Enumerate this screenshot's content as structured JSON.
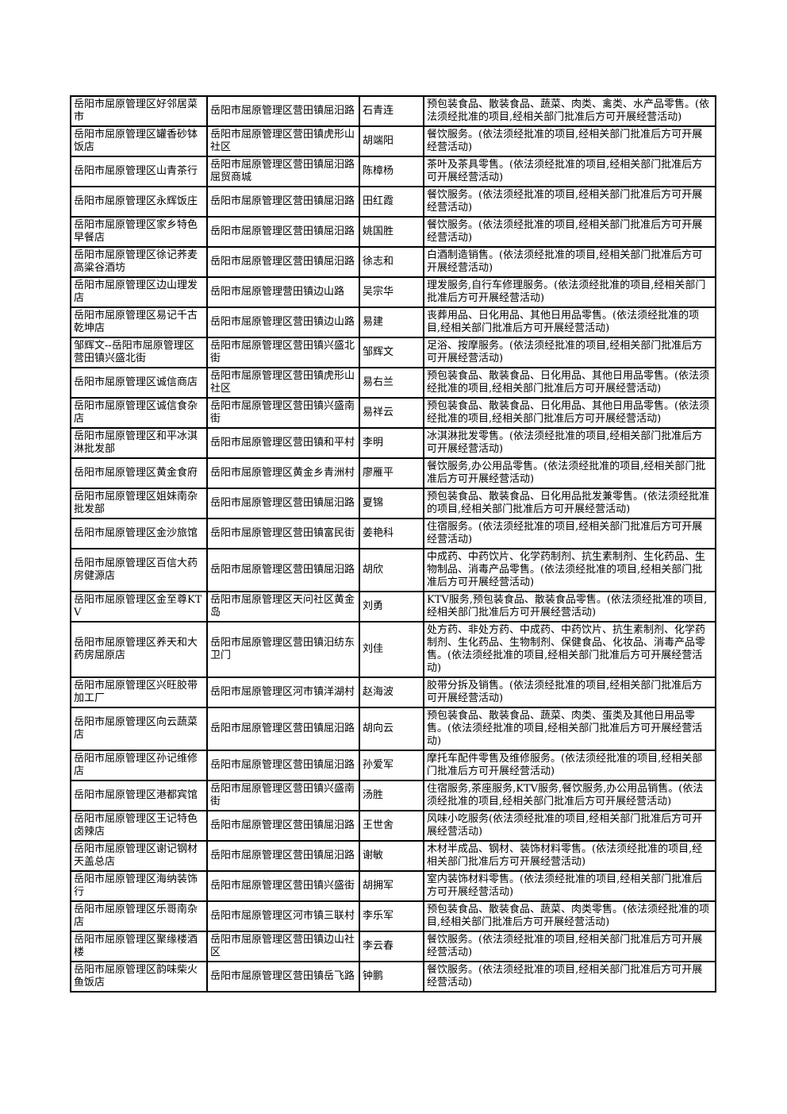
{
  "page": {
    "background": "#ffffff",
    "border_color": "#000000",
    "text_color": "#000000"
  },
  "table": {
    "rows": [
      {
        "name": "岳阳市屈原管理区好邻居菜市",
        "address": "岳阳市屈原管理区营田镇屈汨路",
        "operator": "石青连",
        "scope": "预包装食品、散装食品、蔬菜、肉类、禽类、水产品零售。(依法须经批准的项目,经相关部门批准后方可开展经营活动)"
      },
      {
        "name": "岳阳市屈原管理区罐香砂钵饭店",
        "address": "岳阳市屈原管理区营田镇虎形山社区",
        "operator": "胡端阳",
        "scope": "餐饮服务。(依法须经批准的项目,经相关部门批准后方可开展经营活动)"
      },
      {
        "name": "岳阳市屈原管理区山青茶行",
        "address": "岳阳市屈原管理区营田镇屈汨路屈贸商城",
        "operator": "陈樟杨",
        "scope": "茶叶及茶具零售。(依法须经批准的项目,经相关部门批准后方可开展经营活动)"
      },
      {
        "name": "岳阳市屈原管理区永辉饭庄",
        "address": "岳阳市屈原管理区营田镇屈汨路",
        "operator": "田红霞",
        "scope": "餐饮服务。(依法须经批准的项目,经相关部门批准后方可开展经营活动)"
      },
      {
        "name": "岳阳市屈原管理区家乡特色早餐店",
        "address": "岳阳市屈原管理区营田镇屈汨路",
        "operator": "姚国胜",
        "scope": "餐饮服务。(依法须经批准的项目,经相关部门批准后方可开展经营活动)"
      },
      {
        "name": "岳阳市屈原管理区徐记荞麦高粱谷酒坊",
        "address": "岳阳市屈原管理区营田镇屈汨路",
        "operator": "徐志和",
        "scope": "白酒制造销售。(依法须经批准的项目,经相关部门批准后方可开展经营活动)"
      },
      {
        "name": "岳阳市屈原管理区边山理发店",
        "address": "岳阳市屈原管理营田镇边山路",
        "operator": "吴宗华",
        "scope": "理发服务,自行车修理服务。(依法须经批准的项目,经相关部门批准后方可开展经营活动)"
      },
      {
        "name": "岳阳市屈原管理区易记千古乾坤店",
        "address": "岳阳市屈原管理区营田镇边山路",
        "operator": "易建",
        "scope": "丧葬用品、日化用品、其他日用品零售。(依法须经批准的项目,经相关部门批准后方可开展经营活动)"
      },
      {
        "name": "邹辉文--岳阳市屈原管理区营田镇兴盛北街",
        "address": "岳阳市屈原管理区营田镇兴盛北街",
        "operator": "邹辉文",
        "scope": "足浴、按摩服务。(依法须经批准的项目,经相关部门批准后方可开展经营活动)"
      },
      {
        "name": "岳阳市屈原管理区诚信商店",
        "address": "岳阳市屈原管理区营田镇虎形山社区",
        "operator": "易右兰",
        "scope": "预包装食品、散装食品、日化用品、其他日用品零售。(依法须经批准的项目,经相关部门批准后方可开展经营活动)"
      },
      {
        "name": "岳阳市屈原管理区诚信食杂店",
        "address": "岳阳市屈原管理区营田镇兴盛南街",
        "operator": "易祥云",
        "scope": "预包装食品、散装食品、日化用品、其他日用品零售。(依法须经批准的项目,经相关部门批准后方可开展经营活动)"
      },
      {
        "name": "岳阳市屈原管理区和平冰淇淋批发部",
        "address": "岳阳市屈原管理区营田镇和平村",
        "operator": "李明",
        "scope": "冰淇淋批发零售。(依法须经批准的项目,经相关部门批准后方可开展经营活动)"
      },
      {
        "name": "岳阳市屈原管理区黄金食府",
        "address": "岳阳市屈原管理区黄金乡青洲村",
        "operator": "廖雁平",
        "scope": "餐饮服务,办公用品零售。(依法须经批准的项目,经相关部门批准后方可开展经营活动)"
      },
      {
        "name": "岳阳市屈原管理区姐妹南杂批发部",
        "address": "岳阳市屈原管理区营田镇屈汨路",
        "operator": "夏锦",
        "scope": "预包装食品、散装食品、日化用品批发兼零售。(依法须经批准的项目,经相关部门批准后方可开展经营活动)"
      },
      {
        "name": "岳阳市屈原管理区金沙旅馆",
        "address": "岳阳市屈原管理区营田镇富民街",
        "operator": "姜艳科",
        "scope": "住宿服务。(依法须经批准的项目,经相关部门批准后方可开展经营活动)"
      },
      {
        "name": "岳阳市屈原管理区百信大药房健源店",
        "address": "岳阳市屈原管理区营田镇屈汨路",
        "operator": "胡欣",
        "scope": "中成药、中药饮片、化学药制剂、抗生素制剂、生化药品、生物制品、消毒产品零售。(依法须经批准的项目,经相关部门批准后方可开展经营活动)"
      },
      {
        "name": "岳阳市屈原管理区金至尊KTV",
        "address": "岳阳市屈原管理区天问社区黄金岛",
        "operator": "刘勇",
        "scope": "KTV服务,预包装食品、散装食品零售。(依法须经批准的项目,经相关部门批准后方可开展经营活动)"
      },
      {
        "name": "岳阳市屈原管理区养天和大药房屈原店",
        "address": "岳阳市屈原管理区营田镇汨纺东卫门",
        "operator": "刘佳",
        "scope": "处方药、非处方药、中成药、中药饮片、抗生素制剂、化学药制剂、生化药品、生物制剂、保健食品、化妆品、消毒产品零售。(依法须经批准的项目,经相关部门批准后方可开展经营活动)"
      },
      {
        "name": "岳阳市屈原管理区兴旺胶带加工厂",
        "address": "岳阳市屈原管理区河市镇洋湖村",
        "operator": "赵海波",
        "scope": "胶带分拆及销售。(依法须经批准的项目,经相关部门批准后方可开展经营活动)"
      },
      {
        "name": "岳阳市屈原管理区向云蔬菜店",
        "address": "岳阳市屈原管理区营田镇屈汨路",
        "operator": "胡向云",
        "scope": "预包装食品、散装食品、蔬菜、肉类、蛋类及其他日用品零售。(依法须经批准的项目,经相关部门批准后方可开展经营活动)"
      },
      {
        "name": "岳阳市屈原管理区孙记维修店",
        "address": "岳阳市屈原管理区营田镇屈汨路",
        "operator": "孙爱军",
        "scope": "摩托车配件零售及维修服务。(依法须经批准的项目,经相关部门批准后方可开展经营活动)"
      },
      {
        "name": "岳阳市屈原管理区港都宾馆",
        "address": "岳阳市屈原管理区营田镇兴盛南街",
        "operator": "汤胜",
        "scope": "住宿服务,茶座服务,KTV服务,餐饮服务,办公用品销售。(依法须经批准的项目,经相关部门批准后方可开展经营活动)"
      },
      {
        "name": "岳阳市屈原管理区王记特色卤辣店",
        "address": "岳阳市屈原管理区营田镇屈汨路",
        "operator": "王世舍",
        "scope": "风味小吃服务(依法须经批准的项目,经相关部门批准后方可开展经营活动)"
      },
      {
        "name": "岳阳市屈原管理区谢记钢材天盖总店",
        "address": "岳阳市屈原管理区营田镇屈汨路",
        "operator": "谢敏",
        "scope": "木材半成品、钢材、装饰材料零售。(依法须经批准的项目,经相关部门批准后方可开展经营活动)"
      },
      {
        "name": "岳阳市屈原管理区海纳装饰行",
        "address": "岳阳市屈原管理区营田镇兴盛街",
        "operator": "胡拥军",
        "scope": "室内装饰材料零售。(依法须经批准的项目,经相关部门批准后方可开展经营活动)"
      },
      {
        "name": "岳阳市屈原管理区乐哥南杂店",
        "address": "岳阳市屈原管理区河市镇三联村",
        "operator": "李乐军",
        "scope": "预包装食品、散装食品、蔬菜、肉类零售。(依法须经批准的项目,经相关部门批准后方可开展经营活动)"
      },
      {
        "name": "岳阳市屈原管理区聚缘楼酒楼",
        "address": "岳阳市屈原管理区营田镇边山社区",
        "operator": "李云春",
        "scope": "餐饮服务。(依法须经批准的项目,经相关部门批准后方可开展经营活动)"
      },
      {
        "name": "岳阳市屈原管理区韵味柴火鱼饭店",
        "address": "岳阳市屈原管理区营田镇岳飞路",
        "operator": "钟鹏",
        "scope": "餐饮服务。(依法须经批准的项目,经相关部门批准后方可开展经营活动)"
      }
    ]
  }
}
